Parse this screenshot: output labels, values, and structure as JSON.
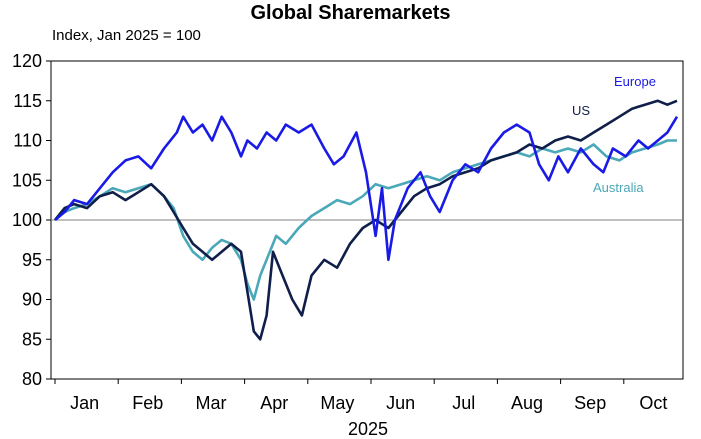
{
  "chart_data": {
    "type": "line",
    "title": "Global Sharemarkets",
    "subtitle": "Index, Jan 2025 = 100",
    "xlabel": "2025",
    "ylabel": "",
    "ylim": [
      80,
      120
    ],
    "yticks": [
      80,
      85,
      90,
      95,
      100,
      105,
      110,
      115,
      120
    ],
    "xlim": [
      0,
      9.7
    ],
    "xtick_labels": [
      "Jan",
      "Feb",
      "Mar",
      "Apr",
      "May",
      "Jun",
      "Jul",
      "Aug",
      "Sep",
      "Oct"
    ],
    "reference_line": 100,
    "grid": false,
    "legend": "inline labels at right",
    "series": [
      {
        "name": "Europe",
        "color": "#1a1ae6",
        "points": [
          [
            0.0,
            100
          ],
          [
            0.15,
            101
          ],
          [
            0.3,
            102.5
          ],
          [
            0.5,
            102
          ],
          [
            0.7,
            104
          ],
          [
            0.9,
            106
          ],
          [
            1.1,
            107.5
          ],
          [
            1.3,
            108
          ],
          [
            1.5,
            106.5
          ],
          [
            1.7,
            109
          ],
          [
            1.9,
            111
          ],
          [
            2.0,
            113
          ],
          [
            2.15,
            111
          ],
          [
            2.3,
            112
          ],
          [
            2.45,
            110
          ],
          [
            2.6,
            113
          ],
          [
            2.75,
            111
          ],
          [
            2.9,
            108
          ],
          [
            3.0,
            110
          ],
          [
            3.15,
            109
          ],
          [
            3.3,
            111
          ],
          [
            3.45,
            110
          ],
          [
            3.6,
            112
          ],
          [
            3.8,
            111
          ],
          [
            4.0,
            112
          ],
          [
            4.2,
            109
          ],
          [
            4.35,
            107
          ],
          [
            4.5,
            108
          ],
          [
            4.7,
            111
          ],
          [
            4.85,
            106
          ],
          [
            5.0,
            98
          ],
          [
            5.1,
            104
          ],
          [
            5.2,
            95
          ],
          [
            5.3,
            100
          ],
          [
            5.5,
            104
          ],
          [
            5.7,
            106
          ],
          [
            5.85,
            103
          ],
          [
            6.0,
            101
          ],
          [
            6.2,
            105
          ],
          [
            6.4,
            107
          ],
          [
            6.6,
            106
          ],
          [
            6.8,
            109
          ],
          [
            7.0,
            111
          ],
          [
            7.2,
            112
          ],
          [
            7.4,
            111
          ],
          [
            7.55,
            107
          ],
          [
            7.7,
            105
          ],
          [
            7.85,
            108
          ],
          [
            8.0,
            106
          ],
          [
            8.2,
            109
          ],
          [
            8.4,
            107
          ],
          [
            8.55,
            106
          ],
          [
            8.7,
            109
          ],
          [
            8.9,
            108
          ],
          [
            9.1,
            110
          ],
          [
            9.25,
            109
          ],
          [
            9.4,
            110
          ],
          [
            9.55,
            111
          ],
          [
            9.7,
            113
          ]
        ]
      },
      {
        "name": "US",
        "color": "#0f1f4a",
        "points": [
          [
            0.0,
            100
          ],
          [
            0.15,
            101.5
          ],
          [
            0.3,
            102
          ],
          [
            0.5,
            101.5
          ],
          [
            0.7,
            103
          ],
          [
            0.9,
            103.5
          ],
          [
            1.1,
            102.5
          ],
          [
            1.3,
            103.5
          ],
          [
            1.5,
            104.5
          ],
          [
            1.7,
            103
          ],
          [
            1.85,
            101
          ],
          [
            2.0,
            99
          ],
          [
            2.15,
            97
          ],
          [
            2.3,
            96
          ],
          [
            2.45,
            95
          ],
          [
            2.6,
            96
          ],
          [
            2.75,
            97
          ],
          [
            2.9,
            96
          ],
          [
            3.0,
            91
          ],
          [
            3.1,
            86
          ],
          [
            3.2,
            85
          ],
          [
            3.3,
            88
          ],
          [
            3.4,
            96
          ],
          [
            3.55,
            93
          ],
          [
            3.7,
            90
          ],
          [
            3.85,
            88
          ],
          [
            4.0,
            93
          ],
          [
            4.2,
            95
          ],
          [
            4.4,
            94
          ],
          [
            4.6,
            97
          ],
          [
            4.8,
            99
          ],
          [
            5.0,
            100
          ],
          [
            5.2,
            99
          ],
          [
            5.4,
            101
          ],
          [
            5.6,
            103
          ],
          [
            5.8,
            104
          ],
          [
            6.0,
            104.5
          ],
          [
            6.2,
            105.5
          ],
          [
            6.4,
            106
          ],
          [
            6.6,
            106.5
          ],
          [
            6.8,
            107.5
          ],
          [
            7.0,
            108
          ],
          [
            7.2,
            108.5
          ],
          [
            7.4,
            109.5
          ],
          [
            7.6,
            109
          ],
          [
            7.8,
            110
          ],
          [
            8.0,
            110.5
          ],
          [
            8.2,
            110
          ],
          [
            8.4,
            111
          ],
          [
            8.6,
            112
          ],
          [
            8.8,
            113
          ],
          [
            9.0,
            114
          ],
          [
            9.2,
            114.5
          ],
          [
            9.4,
            115
          ],
          [
            9.55,
            114.5
          ],
          [
            9.7,
            115
          ]
        ]
      },
      {
        "name": "Australia",
        "color": "#4aa8b8",
        "points": [
          [
            0.0,
            100
          ],
          [
            0.15,
            101
          ],
          [
            0.3,
            101.5
          ],
          [
            0.5,
            102
          ],
          [
            0.7,
            103
          ],
          [
            0.9,
            104
          ],
          [
            1.1,
            103.5
          ],
          [
            1.3,
            104
          ],
          [
            1.5,
            104.5
          ],
          [
            1.7,
            103
          ],
          [
            1.85,
            101.5
          ],
          [
            2.0,
            98
          ],
          [
            2.15,
            96
          ],
          [
            2.3,
            95
          ],
          [
            2.45,
            96.5
          ],
          [
            2.6,
            97.5
          ],
          [
            2.75,
            97
          ],
          [
            2.9,
            95
          ],
          [
            3.0,
            92
          ],
          [
            3.1,
            90
          ],
          [
            3.2,
            93
          ],
          [
            3.3,
            95
          ],
          [
            3.45,
            98
          ],
          [
            3.6,
            97
          ],
          [
            3.8,
            99
          ],
          [
            4.0,
            100.5
          ],
          [
            4.2,
            101.5
          ],
          [
            4.4,
            102.5
          ],
          [
            4.6,
            102
          ],
          [
            4.8,
            103
          ],
          [
            5.0,
            104.5
          ],
          [
            5.2,
            104
          ],
          [
            5.4,
            104.5
          ],
          [
            5.6,
            105
          ],
          [
            5.8,
            105.5
          ],
          [
            6.0,
            105
          ],
          [
            6.2,
            106
          ],
          [
            6.4,
            106.5
          ],
          [
            6.6,
            107
          ],
          [
            6.8,
            107.5
          ],
          [
            7.0,
            108
          ],
          [
            7.2,
            108.5
          ],
          [
            7.4,
            108
          ],
          [
            7.6,
            109
          ],
          [
            7.8,
            108.5
          ],
          [
            8.0,
            109
          ],
          [
            8.2,
            108.5
          ],
          [
            8.4,
            109.5
          ],
          [
            8.6,
            108
          ],
          [
            8.8,
            107.5
          ],
          [
            9.0,
            108.5
          ],
          [
            9.2,
            109
          ],
          [
            9.4,
            109.5
          ],
          [
            9.55,
            110
          ],
          [
            9.7,
            110
          ]
        ]
      }
    ]
  }
}
